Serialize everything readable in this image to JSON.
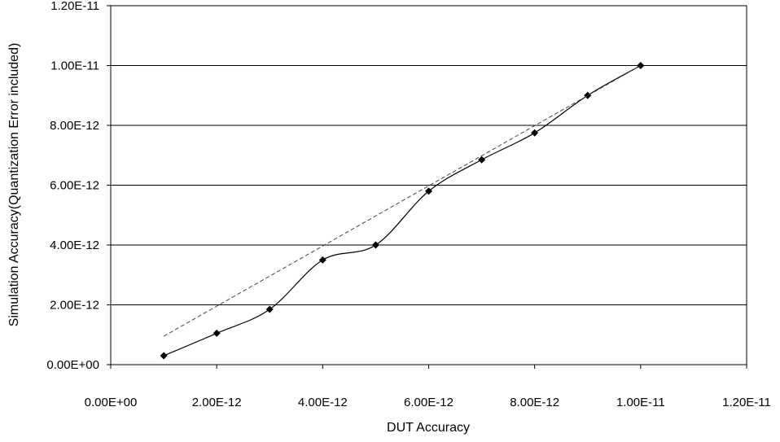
{
  "chart_data": {
    "type": "scatter",
    "title": "",
    "xlabel": "DUT Accuracy",
    "ylabel": "Simulation Accuracy(Quantization Error included)",
    "xlim": [
      0,
      1.2e-11
    ],
    "ylim": [
      0,
      1.2e-11
    ],
    "x_ticks": [
      0,
      2e-12,
      4e-12,
      6e-12,
      8e-12,
      1e-11,
      1.2e-11
    ],
    "y_ticks": [
      0,
      2e-12,
      4e-12,
      6e-12,
      8e-12,
      1e-11,
      1.2e-11
    ],
    "x_tick_labels": [
      "0.00E+00",
      "2.00E-12",
      "4.00E-12",
      "6.00E-12",
      "8.00E-12",
      "1.00E-11",
      "1.20E-11"
    ],
    "y_tick_labels": [
      "0.00E+00",
      "2.00E-12",
      "4.00E-12",
      "6.00E-12",
      "8.00E-12",
      "1.00E-11",
      "1.20E-11"
    ],
    "grid": "horizontal",
    "legend": "none",
    "series": [
      {
        "style": "solid-smoothed-line-with-diamond-markers",
        "color": "#000000",
        "x": [
          1e-12,
          2e-12,
          3e-12,
          4e-12,
          5e-12,
          6e-12,
          7e-12,
          8e-12,
          9e-12,
          1e-11
        ],
        "y": [
          3e-13,
          1.05e-12,
          1.85e-12,
          3.5e-12,
          4e-12,
          5.8e-12,
          6.85e-12,
          7.75e-12,
          9e-12,
          1e-11
        ]
      },
      {
        "style": "dashed-reference-line",
        "color": "#444444",
        "x": [
          1e-12,
          1e-11
        ],
        "y": [
          9.5e-13,
          1e-11
        ]
      }
    ]
  }
}
